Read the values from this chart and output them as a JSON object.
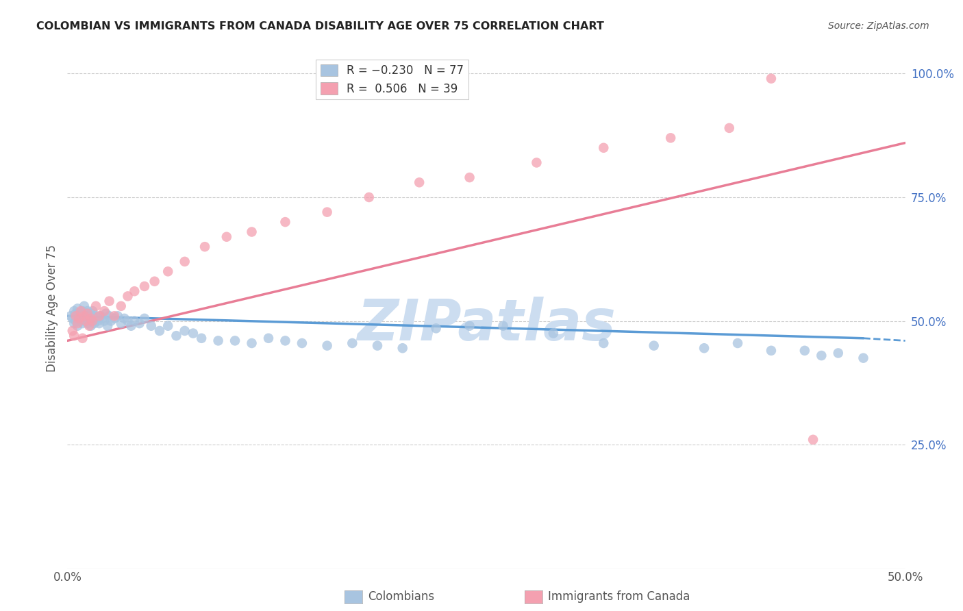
{
  "title": "COLOMBIAN VS IMMIGRANTS FROM CANADA DISABILITY AGE OVER 75 CORRELATION CHART",
  "source": "Source: ZipAtlas.com",
  "ylabel": "Disability Age Over 75",
  "xlim": [
    0.0,
    0.5
  ],
  "ylim": [
    0.0,
    1.05
  ],
  "ytick_positions": [
    0.25,
    0.5,
    0.75,
    1.0
  ],
  "ytick_labels": [
    "25.0%",
    "50.0%",
    "75.0%",
    "100.0%"
  ],
  "colombians_x": [
    0.002,
    0.003,
    0.004,
    0.004,
    0.005,
    0.005,
    0.006,
    0.006,
    0.007,
    0.007,
    0.008,
    0.008,
    0.009,
    0.009,
    0.01,
    0.01,
    0.011,
    0.011,
    0.012,
    0.012,
    0.013,
    0.013,
    0.014,
    0.014,
    0.015,
    0.015,
    0.016,
    0.016,
    0.017,
    0.018,
    0.019,
    0.02,
    0.021,
    0.022,
    0.023,
    0.024,
    0.025,
    0.026,
    0.028,
    0.03,
    0.032,
    0.034,
    0.036,
    0.038,
    0.04,
    0.043,
    0.046,
    0.05,
    0.055,
    0.06,
    0.065,
    0.07,
    0.075,
    0.08,
    0.09,
    0.1,
    0.11,
    0.12,
    0.13,
    0.14,
    0.155,
    0.17,
    0.185,
    0.2,
    0.22,
    0.24,
    0.26,
    0.29,
    0.32,
    0.35,
    0.38,
    0.4,
    0.42,
    0.44,
    0.45,
    0.46,
    0.475
  ],
  "colombians_y": [
    0.51,
    0.505,
    0.52,
    0.495,
    0.515,
    0.5,
    0.525,
    0.49,
    0.51,
    0.515,
    0.5,
    0.505,
    0.52,
    0.495,
    0.51,
    0.53,
    0.5,
    0.505,
    0.52,
    0.495,
    0.51,
    0.5,
    0.515,
    0.49,
    0.51,
    0.52,
    0.505,
    0.495,
    0.51,
    0.5,
    0.495,
    0.51,
    0.505,
    0.5,
    0.515,
    0.49,
    0.51,
    0.5,
    0.505,
    0.51,
    0.495,
    0.505,
    0.5,
    0.49,
    0.5,
    0.495,
    0.505,
    0.49,
    0.48,
    0.49,
    0.47,
    0.48,
    0.475,
    0.465,
    0.46,
    0.46,
    0.455,
    0.465,
    0.46,
    0.455,
    0.45,
    0.455,
    0.45,
    0.445,
    0.485,
    0.49,
    0.49,
    0.475,
    0.455,
    0.45,
    0.445,
    0.455,
    0.44,
    0.44,
    0.43,
    0.435,
    0.425
  ],
  "canada_x": [
    0.003,
    0.004,
    0.005,
    0.006,
    0.007,
    0.008,
    0.009,
    0.01,
    0.011,
    0.012,
    0.013,
    0.014,
    0.015,
    0.017,
    0.019,
    0.022,
    0.025,
    0.028,
    0.032,
    0.036,
    0.04,
    0.046,
    0.052,
    0.06,
    0.07,
    0.082,
    0.095,
    0.11,
    0.13,
    0.155,
    0.18,
    0.21,
    0.24,
    0.28,
    0.32,
    0.36,
    0.395,
    0.42,
    0.445
  ],
  "canada_y": [
    0.48,
    0.47,
    0.51,
    0.495,
    0.505,
    0.52,
    0.465,
    0.51,
    0.5,
    0.515,
    0.49,
    0.505,
    0.5,
    0.53,
    0.51,
    0.52,
    0.54,
    0.51,
    0.53,
    0.55,
    0.56,
    0.57,
    0.58,
    0.6,
    0.62,
    0.65,
    0.67,
    0.68,
    0.7,
    0.72,
    0.75,
    0.78,
    0.79,
    0.82,
    0.85,
    0.87,
    0.89,
    0.99,
    0.26
  ],
  "blue_line_x0": 0.0,
  "blue_line_x1": 0.475,
  "blue_line_xdash1": 0.475,
  "blue_line_xdash2": 0.5,
  "blue_line_y_at_0": 0.51,
  "blue_line_y_at_475": 0.465,
  "blue_line_y_at_50": 0.46,
  "pink_line_x0": 0.0,
  "pink_line_x1": 0.5,
  "pink_line_y_at_0": 0.46,
  "pink_line_y_at_50": 0.86,
  "blue_line_color": "#5b9bd5",
  "pink_line_color": "#e87d96",
  "blue_dot_color": "#a8c4e0",
  "pink_dot_color": "#f4a0b0",
  "background_color": "#ffffff",
  "grid_color": "#cccccc",
  "title_color": "#222222",
  "right_axis_color": "#4472c4",
  "watermark_color": "#ccddf0"
}
